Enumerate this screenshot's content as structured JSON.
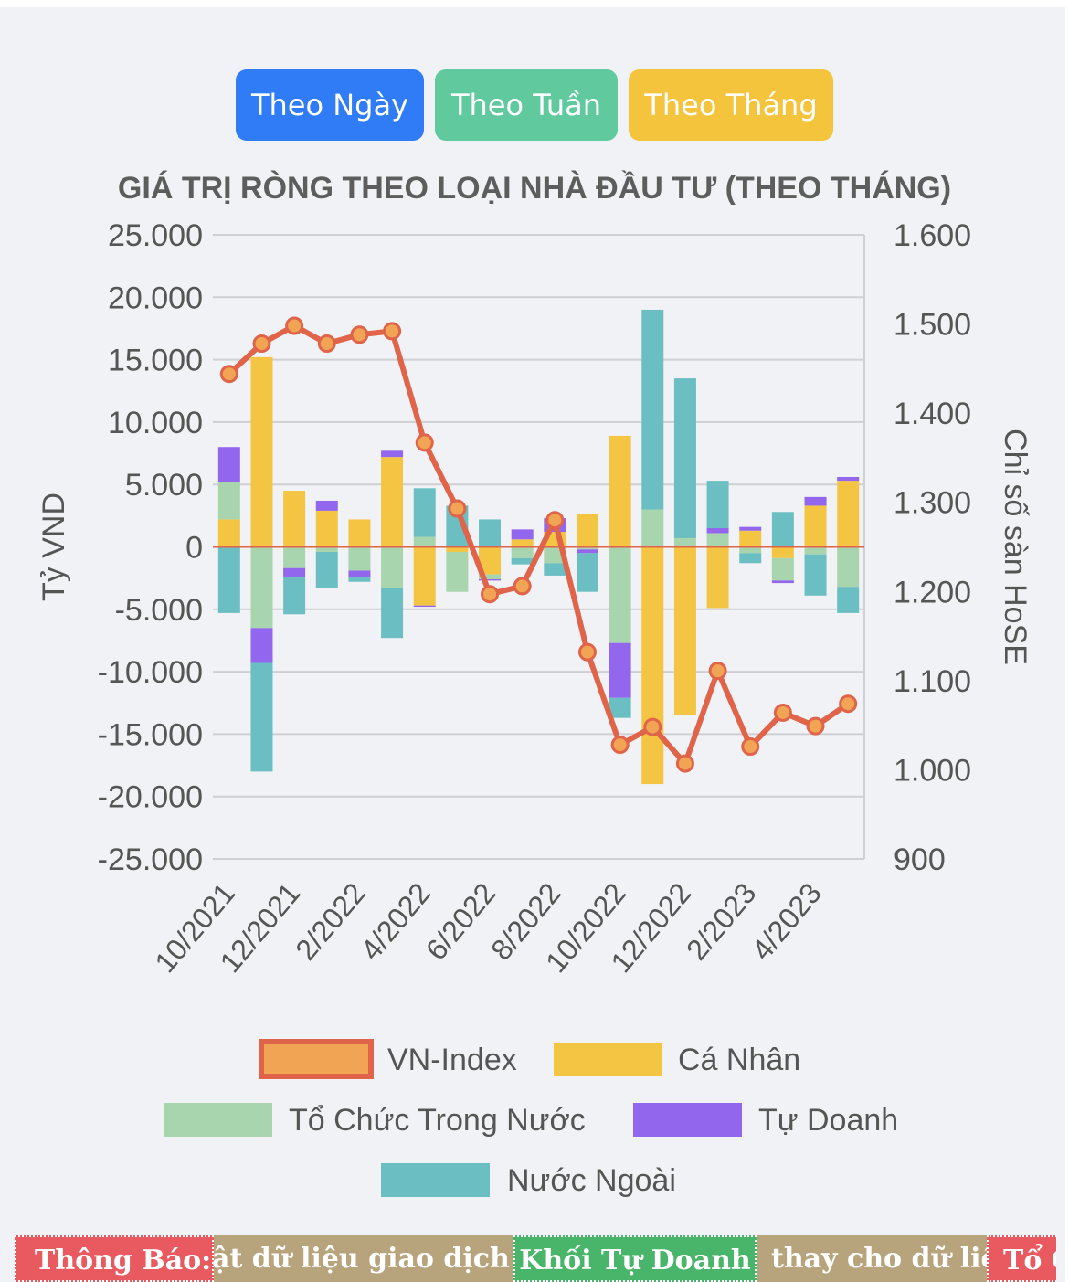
{
  "tabs": [
    {
      "label": "Theo Ngày",
      "color": "#2f7cf6"
    },
    {
      "label": "Theo Tuần",
      "color": "#60c99d"
    },
    {
      "label": "Theo Tháng",
      "color": "#f4c43d"
    }
  ],
  "ticker": {
    "label": "Thông Báo:",
    "text1": "ật dữ liệu giao dịch của",
    "highlight1": "Khối Tự Doanh",
    "text2": "thay cho dữ liệu",
    "highlight2": "Tổ C"
  },
  "chart_data": {
    "type": "bar",
    "title": "GIÁ TRỊ RÒNG THEO LOẠI NHÀ ĐẦU TƯ (THEO THÁNG)",
    "ylabel": "Tỷ VND",
    "y2label": "Chỉ số sàn HoSE",
    "ylim": [
      -25000,
      25000
    ],
    "y2lim": [
      900,
      1600
    ],
    "yticks": [
      "25.000",
      "20.000",
      "15.000",
      "10.000",
      "5.000",
      "0",
      "-5.000",
      "-10.000",
      "-15.000",
      "-20.000",
      "-25.000"
    ],
    "y2ticks": [
      "1.600",
      "1.500",
      "1.400",
      "1.300",
      "1.200",
      "1.100",
      "1.000",
      "900"
    ],
    "categories": [
      "10/2021",
      "11/2021",
      "12/2021",
      "1/2022",
      "2/2022",
      "3/2022",
      "4/2022",
      "5/2022",
      "6/2022",
      "7/2022",
      "8/2022",
      "9/2022",
      "10/2022",
      "11/2022",
      "12/2022",
      "1/2023",
      "2/2023",
      "3/2023",
      "4/2023",
      "5/2023"
    ],
    "xtick_labels": [
      "10/2021",
      "12/2021",
      "2/2022",
      "4/2022",
      "6/2022",
      "8/2022",
      "10/2022",
      "12/2022",
      "2/2023",
      "4/2023"
    ],
    "stacked": true,
    "grid": true,
    "legend_position": "bottom",
    "series": [
      {
        "name": "Cá Nhân",
        "color": "#f4c443",
        "values": [
          2200,
          15200,
          4500,
          2900,
          2200,
          7200,
          -4700,
          -400,
          -2200,
          600,
          1200,
          2600,
          8900,
          -19000,
          -13500,
          -4900,
          1300,
          -900,
          3300,
          5300
        ]
      },
      {
        "name": "Tổ Chức Trong Nước",
        "color": "#a8d5ae",
        "values": [
          3000,
          -6500,
          -1700,
          -400,
          -1900,
          -3300,
          800,
          -3200,
          -400,
          -900,
          -1300,
          -200,
          -7700,
          3000,
          700,
          1100,
          -500,
          -1800,
          -600,
          -3200
        ]
      },
      {
        "name": "Tự Doanh",
        "color": "#9266ed",
        "values": [
          2800,
          -2800,
          -700,
          800,
          -500,
          500,
          -100,
          100,
          -100,
          800,
          1100,
          -300,
          -4400,
          0,
          0,
          400,
          300,
          -200,
          700,
          300
        ]
      },
      {
        "name": "Nước Ngoài",
        "color": "#6bbec1",
        "values": [
          -5300,
          -8700,
          -3000,
          -2900,
          -400,
          -4000,
          3900,
          3200,
          2200,
          -500,
          -1000,
          -3100,
          -1600,
          16000,
          12800,
          3800,
          -800,
          2800,
          -3300,
          -2100
        ]
      },
      {
        "name": "VN-Index",
        "type": "line",
        "axis": "right",
        "color": "#e0644a",
        "marker_color": "#f2a455",
        "values": [
          1444,
          1478,
          1498,
          1478,
          1488,
          1492,
          1367,
          1293,
          1197,
          1206,
          1280,
          1132,
          1028,
          1048,
          1007,
          1111,
          1026,
          1064,
          1049,
          1074
        ]
      }
    ]
  }
}
